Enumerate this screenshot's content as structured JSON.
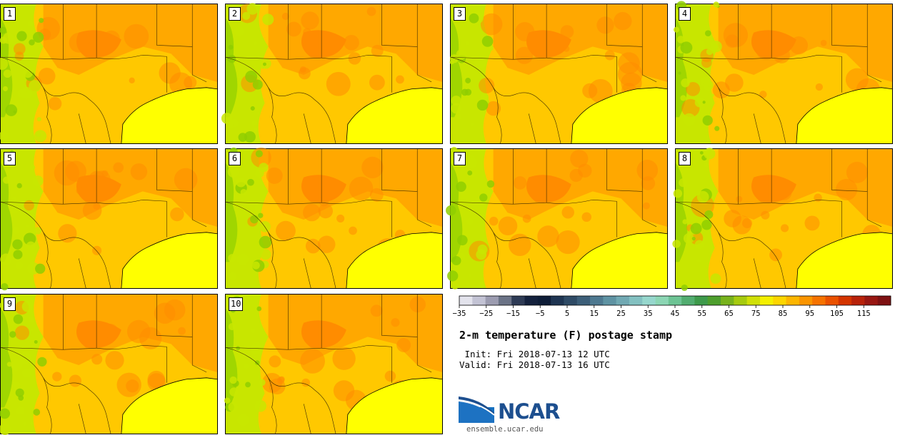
{
  "panels": [
    {
      "label": "1"
    },
    {
      "label": "2"
    },
    {
      "label": "3"
    },
    {
      "label": "4"
    },
    {
      "label": "5"
    },
    {
      "label": "6"
    },
    {
      "label": "7"
    },
    {
      "label": "8"
    },
    {
      "label": "9"
    },
    {
      "label": "10"
    }
  ],
  "colorbar": {
    "colors": [
      "#e3e3ec",
      "#c3c3d4",
      "#9c9cb0",
      "#6b7386",
      "#2e3b55",
      "#14213d",
      "#0e1d37",
      "#1f3552",
      "#2f4b66",
      "#3d5f79",
      "#4e7990",
      "#5f93a3",
      "#71a9b3",
      "#83c1c1",
      "#96d7cd",
      "#8cd6b4",
      "#6dc494",
      "#52ad70",
      "#3e9a4b",
      "#4e9f2d",
      "#78b31c",
      "#a6cb0f",
      "#d0e007",
      "#f4f000",
      "#fdd600",
      "#fdb600",
      "#fb9500",
      "#f67300",
      "#ea5100",
      "#d43400",
      "#b8220a",
      "#981712",
      "#7e1112"
    ],
    "tick_labels": [
      "−35",
      "−25",
      "−15",
      "−5",
      "5",
      "15",
      "25",
      "35",
      "45",
      "55",
      "65",
      "75",
      "85",
      "95",
      "105",
      "115"
    ]
  },
  "title": "2-m temperature (F) postage stamp",
  "init": " Init: Fri 2018-07-13 12 UTC",
  "valid": "Valid: Fri 2018-07-13 16 UTC",
  "logo": {
    "text": "NCAR",
    "url": "ensemble.ucar.edu"
  },
  "map_colors": {
    "base": "#ffc800",
    "hot": "#ffa800",
    "hotter": "#ff8c00",
    "gulf": "#ffff00",
    "green": "#c8e600",
    "darkgreen": "#8fce00",
    "border": "#3a2a00"
  }
}
